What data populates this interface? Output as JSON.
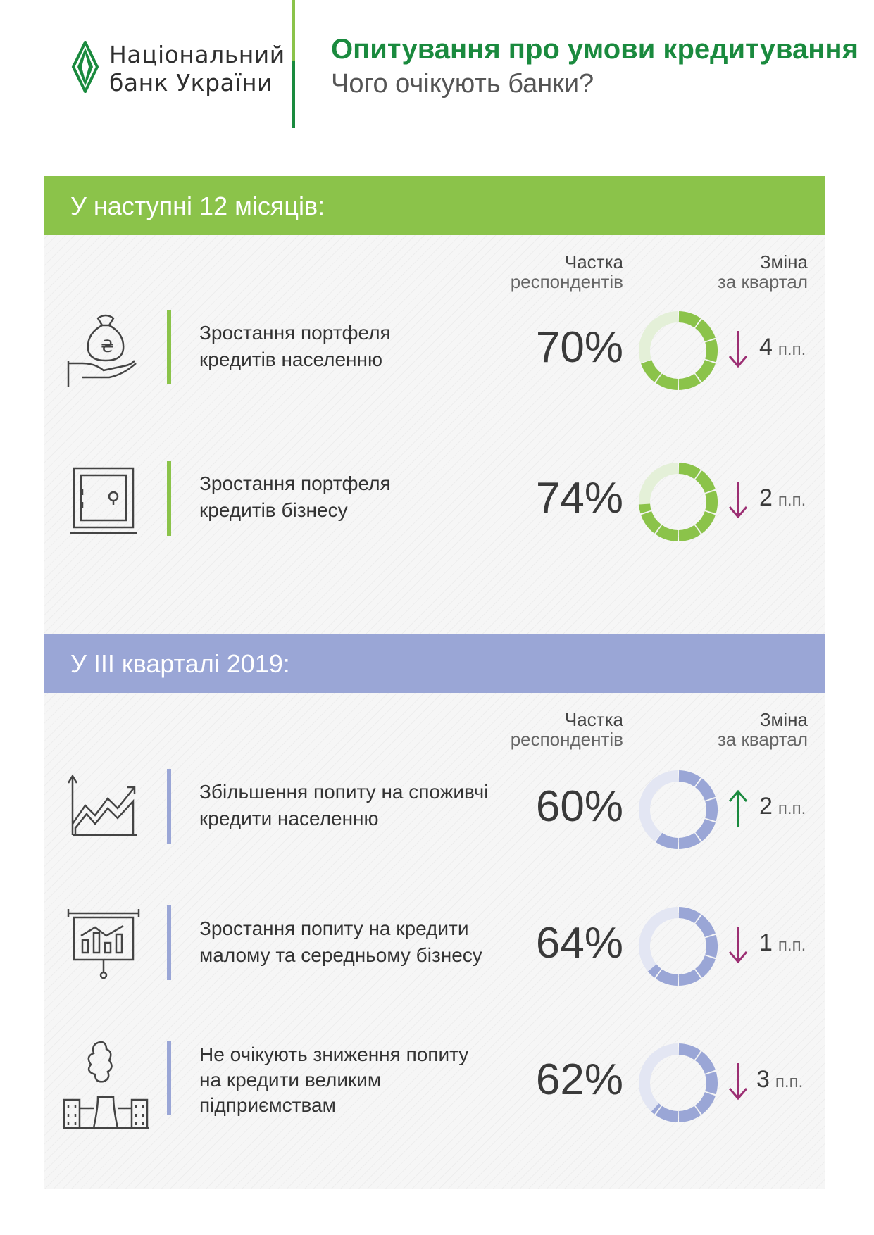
{
  "header": {
    "logo_line1": "Національний",
    "logo_line2": "банк України",
    "title": "Опитування про умови кредитування",
    "subtitle": "Чого очікують банки?"
  },
  "colors": {
    "green": "#8bc34a",
    "dark_green": "#1a8a3e",
    "blue": "#9aa6d6",
    "arrow_down": "#9c2f73",
    "arrow_up": "#1a8a3e"
  },
  "sections": [
    {
      "title": "У наступні 12 місяців:",
      "col_share_1": "Частка",
      "col_share_2": "респондентів",
      "col_change_1": "Зміна",
      "col_change_2": "за квартал",
      "rows": [
        {
          "icon": "money-bag-hand-icon",
          "label1": "Зростання портфеля",
          "label2": "кредитів населенню",
          "label3": "",
          "percent_text": "70%",
          "percent": 70,
          "direction": "down",
          "change": "4",
          "unit": "п.п."
        },
        {
          "icon": "safe-icon",
          "label1": "Зростання портфеля",
          "label2": "кредитів бізнесу",
          "label3": "",
          "percent_text": "74%",
          "percent": 74,
          "direction": "down",
          "change": "2",
          "unit": "п.п."
        }
      ]
    },
    {
      "title": "У ІІІ кварталі 2019:",
      "col_share_1": "Частка",
      "col_share_2": "респондентів",
      "col_change_1": "Зміна",
      "col_change_2": "за квартал",
      "rows": [
        {
          "icon": "growth-chart-icon",
          "label1": "Збільшення попиту на споживчі",
          "label2": "кредити населенню",
          "label3": "",
          "percent_text": "60%",
          "percent": 60,
          "direction": "up",
          "change": "2",
          "unit": "п.п."
        },
        {
          "icon": "presentation-board-icon",
          "label1": "Зростання попиту на кредити",
          "label2": "малому та середньому бізнесу",
          "label3": "",
          "percent_text": "64%",
          "percent": 64,
          "direction": "down",
          "change": "1",
          "unit": "п.п."
        },
        {
          "icon": "factory-icon",
          "label1": "Не очікують зниження попиту",
          "label2": "на кредити великим",
          "label3": "підприємствам",
          "percent_text": "62%",
          "percent": 62,
          "direction": "down",
          "change": "3",
          "unit": "п.п."
        }
      ]
    }
  ]
}
